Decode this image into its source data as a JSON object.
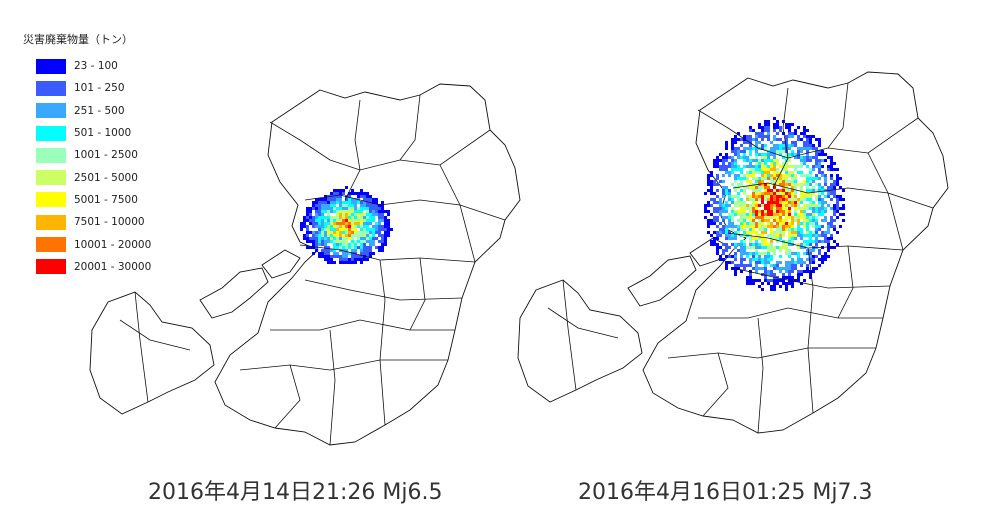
{
  "legend": {
    "title": "災害廃棄物量（トン）",
    "items": [
      {
        "label": "23 - 100",
        "color": "#0000ff"
      },
      {
        "label": "101 - 250",
        "color": "#3a5cff"
      },
      {
        "label": "251 - 500",
        "color": "#3aa8ff"
      },
      {
        "label": "501 - 1000",
        "color": "#00ffff"
      },
      {
        "label": "1001 - 2500",
        "color": "#99ffbb"
      },
      {
        "label": "2501 - 5000",
        "color": "#ccff66"
      },
      {
        "label": "5001 - 7500",
        "color": "#ffff00"
      },
      {
        "label": "7501 - 10000",
        "color": "#ffb400"
      },
      {
        "label": "10001 - 20000",
        "color": "#ff7400"
      },
      {
        "label": "20001 - 30000",
        "color": "#ff0000"
      }
    ]
  },
  "maps": [
    {
      "caption": "2016年4月14日21:26 Mj6.5"
    },
    {
      "caption": "2016年4月16日01:25 Mj7.3"
    }
  ]
}
